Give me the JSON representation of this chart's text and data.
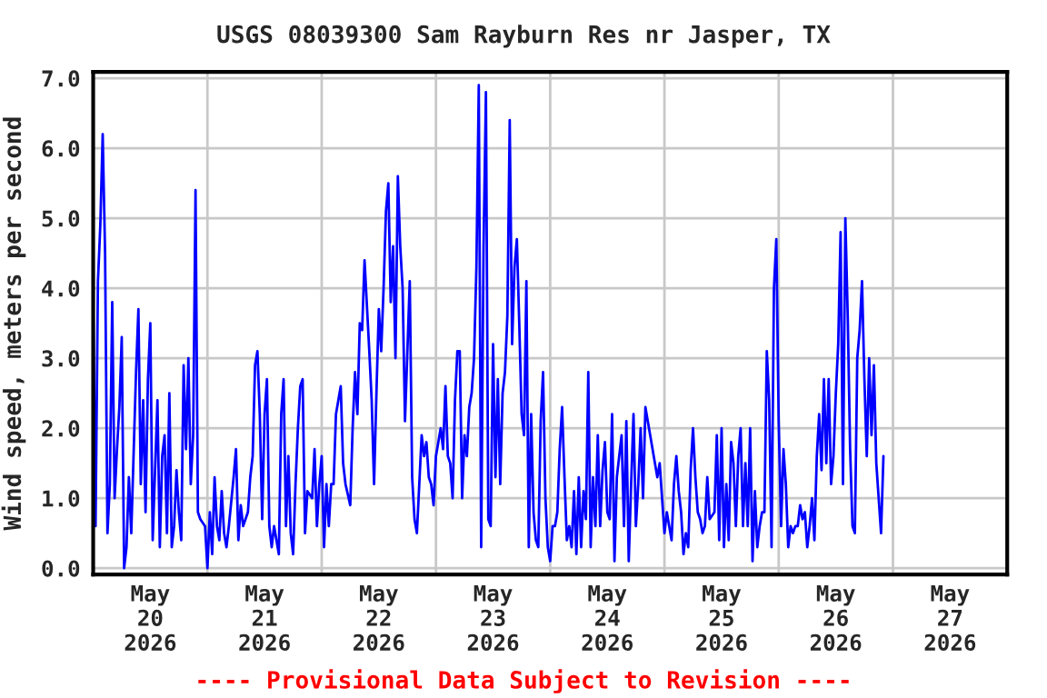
{
  "chart_data": {
    "type": "line",
    "title": "USGS 08039300 Sam Rayburn Res nr Jasper, TX",
    "ylabel": "Wind speed, meters per second",
    "annotations": [
      "---- Provisional Data Subject to Revision ----"
    ],
    "xlim": [
      "2026-05-20T00:00",
      "2026-05-28T00:00"
    ],
    "xticks": [
      {
        "value": "2026-05-20T00:00",
        "label": null
      },
      {
        "value": "2026-05-21T00:00",
        "label": null
      },
      {
        "value": "2026-05-22T00:00",
        "label": null
      },
      {
        "value": "2026-05-23T00:00",
        "label": null
      },
      {
        "value": "2026-05-24T00:00",
        "label": null
      },
      {
        "value": "2026-05-25T00:00",
        "label": null
      },
      {
        "value": "2026-05-26T00:00",
        "label": null
      },
      {
        "value": "2026-05-27T00:00",
        "label": null
      },
      {
        "value": "2026-05-28T00:00",
        "label": null
      },
      {
        "value": "2026-05-20T12:00",
        "label": "May\n20\n2026"
      },
      {
        "value": "2026-05-21T12:00",
        "label": "May\n21\n2026"
      },
      {
        "value": "2026-05-22T12:00",
        "label": "May\n22\n2026"
      },
      {
        "value": "2026-05-23T12:00",
        "label": "May\n23\n2026"
      },
      {
        "value": "2026-05-24T12:00",
        "label": "May\n24\n2026"
      },
      {
        "value": "2026-05-25T12:00",
        "label": "May\n25\n2026"
      },
      {
        "value": "2026-05-26T12:00",
        "label": "May\n26\n2026"
      },
      {
        "value": "2026-05-27T12:00",
        "label": "May\n27\n2026"
      }
    ],
    "ylim": [
      -0.09,
      7.09
    ],
    "yticks": [
      {
        "value": 0,
        "label": "0.0"
      },
      {
        "value": 1,
        "label": "1.0"
      },
      {
        "value": 2,
        "label": "2.0"
      },
      {
        "value": 3,
        "label": "3.0"
      },
      {
        "value": 4,
        "label": "4.0"
      },
      {
        "value": 5,
        "label": "5.0"
      },
      {
        "value": 6,
        "label": "6.0"
      },
      {
        "value": 7,
        "label": "7.0"
      }
    ],
    "grid": true,
    "series": [
      {
        "color": "#0000ff",
        "x": [
          "2026-05-20T00:00",
          "2026-05-20T00:30",
          "2026-05-20T01:00",
          "2026-05-20T01:30",
          "2026-05-20T02:00",
          "2026-05-20T02:30",
          "2026-05-20T03:00",
          "2026-05-20T03:30",
          "2026-05-20T04:00",
          "2026-05-20T04:30",
          "2026-05-20T05:00",
          "2026-05-20T05:30",
          "2026-05-20T06:00",
          "2026-05-20T06:30",
          "2026-05-20T07:00",
          "2026-05-20T07:30",
          "2026-05-20T08:00",
          "2026-05-20T09:00",
          "2026-05-20T09:30",
          "2026-05-20T10:00",
          "2026-05-20T10:30",
          "2026-05-20T11:00",
          "2026-05-20T11:30",
          "2026-05-20T12:00",
          "2026-05-20T12:30",
          "2026-05-20T13:00",
          "2026-05-20T13:30",
          "2026-05-20T14:00",
          "2026-05-20T14:30",
          "2026-05-20T15:00",
          "2026-05-20T15:30",
          "2026-05-20T16:00",
          "2026-05-20T16:30",
          "2026-05-20T17:00",
          "2026-05-20T17:30",
          "2026-05-20T18:00",
          "2026-05-20T18:30",
          "2026-05-20T19:00",
          "2026-05-20T19:30",
          "2026-05-20T20:00",
          "2026-05-20T20:30",
          "2026-05-20T21:00",
          "2026-05-20T21:30",
          "2026-05-20T22:00",
          "2026-05-20T22:30",
          "2026-05-20T23:30",
          "2026-05-21T00:00",
          "2026-05-21T00:30",
          "2026-05-21T01:00",
          "2026-05-21T01:30",
          "2026-05-21T02:00",
          "2026-05-21T02:30",
          "2026-05-21T03:00",
          "2026-05-21T03:30",
          "2026-05-21T04:00",
          "2026-05-21T04:30",
          "2026-05-21T05:30",
          "2026-05-21T06:00",
          "2026-05-21T06:30",
          "2026-05-21T07:00",
          "2026-05-21T07:30",
          "2026-05-21T08:30",
          "2026-05-21T09:00",
          "2026-05-21T09:30",
          "2026-05-21T10:00",
          "2026-05-21T10:30",
          "2026-05-21T11:00",
          "2026-05-21T11:30",
          "2026-05-21T12:00",
          "2026-05-21T12:30",
          "2026-05-21T13:00",
          "2026-05-21T13:30",
          "2026-05-21T14:00",
          "2026-05-21T15:00",
          "2026-05-21T15:30",
          "2026-05-21T16:00",
          "2026-05-21T16:30",
          "2026-05-21T17:00",
          "2026-05-21T17:30",
          "2026-05-21T18:00",
          "2026-05-21T18:30",
          "2026-05-21T19:00",
          "2026-05-21T19:30",
          "2026-05-21T20:00",
          "2026-05-21T20:30",
          "2026-05-21T21:00",
          "2026-05-21T22:00",
          "2026-05-21T22:30",
          "2026-05-21T23:00",
          "2026-05-21T23:30",
          "2026-05-22T00:00",
          "2026-05-22T00:30",
          "2026-05-22T01:00",
          "2026-05-22T01:30",
          "2026-05-22T02:00",
          "2026-05-22T02:30",
          "2026-05-22T03:00",
          "2026-05-22T04:00",
          "2026-05-22T04:30",
          "2026-05-22T05:00",
          "2026-05-22T06:00",
          "2026-05-22T06:30",
          "2026-05-22T07:00",
          "2026-05-22T07:30",
          "2026-05-22T08:00",
          "2026-05-22T08:30",
          "2026-05-22T09:00",
          "2026-05-22T10:00",
          "2026-05-22T10:30",
          "2026-05-22T11:00",
          "2026-05-22T11:30",
          "2026-05-22T12:00",
          "2026-05-22T12:30",
          "2026-05-22T13:00",
          "2026-05-22T13:30",
          "2026-05-22T14:00",
          "2026-05-22T14:30",
          "2026-05-22T15:00",
          "2026-05-22T15:30",
          "2026-05-22T16:00",
          "2026-05-22T16:30",
          "2026-05-22T17:00",
          "2026-05-22T17:30",
          "2026-05-22T18:00",
          "2026-05-22T18:30",
          "2026-05-22T19:00",
          "2026-05-22T19:30",
          "2026-05-22T20:00",
          "2026-05-22T20:30",
          "2026-05-22T21:00",
          "2026-05-22T21:30",
          "2026-05-22T22:00",
          "2026-05-22T22:30",
          "2026-05-22T23:00",
          "2026-05-22T23:30",
          "2026-05-23T00:00",
          "2026-05-23T01:00",
          "2026-05-23T01:30",
          "2026-05-23T02:00",
          "2026-05-23T02:30",
          "2026-05-23T03:00",
          "2026-05-23T03:30",
          "2026-05-23T04:00",
          "2026-05-23T04:30",
          "2026-05-23T05:00",
          "2026-05-23T05:30",
          "2026-05-23T06:00",
          "2026-05-23T06:30",
          "2026-05-23T07:00",
          "2026-05-23T07:30",
          "2026-05-23T08:00",
          "2026-05-23T08:30",
          "2026-05-23T09:00",
          "2026-05-23T09:30",
          "2026-05-23T10:00",
          "2026-05-23T10:30",
          "2026-05-23T11:00",
          "2026-05-23T11:30",
          "2026-05-23T12:00",
          "2026-05-23T12:30",
          "2026-05-23T13:00",
          "2026-05-23T13:30",
          "2026-05-23T14:00",
          "2026-05-23T14:30",
          "2026-05-23T15:00",
          "2026-05-23T15:30",
          "2026-05-23T16:00",
          "2026-05-23T16:30",
          "2026-05-23T17:00",
          "2026-05-23T17:30",
          "2026-05-23T18:00",
          "2026-05-23T18:30",
          "2026-05-23T19:00",
          "2026-05-23T19:30",
          "2026-05-23T20:00",
          "2026-05-23T20:30",
          "2026-05-23T21:00",
          "2026-05-23T21:30",
          "2026-05-23T22:00",
          "2026-05-23T22:30",
          "2026-05-23T23:00",
          "2026-05-23T23:30",
          "2026-05-24T00:00",
          "2026-05-24T00:30",
          "2026-05-24T01:00",
          "2026-05-24T01:30",
          "2026-05-24T02:00",
          "2026-05-24T02:30",
          "2026-05-24T03:00",
          "2026-05-24T03:30",
          "2026-05-24T04:00",
          "2026-05-24T04:30",
          "2026-05-24T05:00",
          "2026-05-24T05:30",
          "2026-05-24T06:00",
          "2026-05-24T06:30",
          "2026-05-24T07:00",
          "2026-05-24T07:30",
          "2026-05-24T08:00",
          "2026-05-24T08:30",
          "2026-05-24T09:00",
          "2026-05-24T09:30",
          "2026-05-24T10:00",
          "2026-05-24T10:30",
          "2026-05-24T11:00",
          "2026-05-24T11:30",
          "2026-05-24T12:00",
          "2026-05-24T12:30",
          "2026-05-24T13:00",
          "2026-05-24T13:30",
          "2026-05-24T14:00",
          "2026-05-24T15:00",
          "2026-05-24T15:30",
          "2026-05-24T16:00",
          "2026-05-24T16:30",
          "2026-05-24T17:00",
          "2026-05-24T17:30",
          "2026-05-24T18:00",
          "2026-05-24T18:30",
          "2026-05-24T19:00",
          "2026-05-24T19:30",
          "2026-05-24T20:00",
          "2026-05-24T20:30",
          "2026-05-24T21:00",
          "2026-05-24T21:30",
          "2026-05-24T22:00",
          "2026-05-24T22:30",
          "2026-05-24T23:00",
          "2026-05-24T23:30",
          "2026-05-25T00:00",
          "2026-05-25T00:30",
          "2026-05-25T01:00",
          "2026-05-25T01:30",
          "2026-05-25T02:00",
          "2026-05-25T02:30",
          "2026-05-25T03:00",
          "2026-05-25T03:30",
          "2026-05-25T04:00",
          "2026-05-25T04:30",
          "2026-05-25T05:00",
          "2026-05-25T05:30",
          "2026-05-25T06:00",
          "2026-05-25T06:30",
          "2026-05-25T07:00",
          "2026-05-25T07:30",
          "2026-05-25T08:00",
          "2026-05-25T08:30",
          "2026-05-25T09:00",
          "2026-05-25T09:30",
          "2026-05-25T10:30",
          "2026-05-25T11:00",
          "2026-05-25T11:30",
          "2026-05-25T12:00",
          "2026-05-25T12:30",
          "2026-05-25T13:00",
          "2026-05-25T13:30",
          "2026-05-25T14:00",
          "2026-05-25T14:30",
          "2026-05-25T15:00",
          "2026-05-25T15:30",
          "2026-05-25T16:00",
          "2026-05-25T16:30",
          "2026-05-25T17:00",
          "2026-05-25T17:30",
          "2026-05-25T18:00",
          "2026-05-25T18:30",
          "2026-05-25T19:00",
          "2026-05-25T19:30",
          "2026-05-25T20:00",
          "2026-05-25T20:30",
          "2026-05-25T21:00",
          "2026-05-25T21:30",
          "2026-05-25T22:00",
          "2026-05-25T22:30",
          "2026-05-25T23:00",
          "2026-05-25T23:30",
          "2026-05-26T00:00",
          "2026-05-26T00:30",
          "2026-05-26T01:00",
          "2026-05-26T01:30",
          "2026-05-26T02:00",
          "2026-05-26T02:30",
          "2026-05-26T03:00",
          "2026-05-26T03:30",
          "2026-05-26T04:00",
          "2026-05-26T04:30",
          "2026-05-26T05:00",
          "2026-05-26T05:30",
          "2026-05-26T06:00",
          "2026-05-26T06:30",
          "2026-05-26T07:00",
          "2026-05-26T07:30",
          "2026-05-26T08:00",
          "2026-05-26T08:30",
          "2026-05-26T09:00",
          "2026-05-26T09:30",
          "2026-05-26T10:00",
          "2026-05-26T10:30",
          "2026-05-26T11:00",
          "2026-05-26T11:30",
          "2026-05-26T12:00",
          "2026-05-26T12:30",
          "2026-05-26T13:00",
          "2026-05-26T13:30",
          "2026-05-26T14:00",
          "2026-05-26T14:30",
          "2026-05-26T15:00",
          "2026-05-26T15:30",
          "2026-05-26T16:00",
          "2026-05-26T16:30",
          "2026-05-26T17:00",
          "2026-05-26T17:30",
          "2026-05-26T18:00",
          "2026-05-26T18:30",
          "2026-05-26T19:00",
          "2026-05-26T19:30",
          "2026-05-26T20:00",
          "2026-05-26T20:30",
          "2026-05-26T21:00",
          "2026-05-26T21:30",
          "2026-05-26T22:00"
        ],
        "values": [
          3.8,
          0.6,
          4.1,
          4.9,
          6.2,
          4.5,
          0.5,
          1.2,
          3.8,
          1.0,
          1.7,
          2.3,
          3.3,
          0.0,
          0.3,
          1.3,
          0.5,
          2.8,
          3.7,
          1.2,
          2.4,
          0.8,
          2.7,
          3.5,
          0.4,
          1.4,
          2.4,
          0.3,
          1.6,
          1.9,
          0.5,
          2.5,
          0.3,
          0.6,
          1.4,
          0.8,
          0.4,
          2.9,
          1.7,
          3.0,
          1.2,
          1.9,
          5.4,
          0.8,
          0.7,
          0.6,
          0.0,
          0.8,
          0.2,
          1.3,
          0.6,
          0.4,
          1.1,
          0.5,
          0.3,
          0.6,
          1.3,
          1.7,
          0.4,
          0.9,
          0.6,
          0.8,
          1.3,
          1.6,
          2.9,
          3.1,
          2.2,
          0.7,
          2.2,
          2.7,
          0.6,
          0.3,
          0.6,
          0.2,
          2.2,
          2.7,
          0.6,
          1.6,
          0.5,
          0.2,
          1.2,
          2.0,
          2.6,
          2.7,
          0.5,
          1.1,
          1.0,
          1.7,
          0.6,
          1.2,
          1.6,
          0.3,
          1.2,
          0.6,
          1.2,
          1.2,
          2.2,
          2.6,
          1.5,
          1.2,
          0.9,
          2.0,
          2.8,
          2.2,
          3.5,
          3.4,
          4.4,
          3.1,
          2.4,
          1.2,
          2.5,
          3.7,
          3.1,
          4.0,
          5.1,
          5.5,
          3.8,
          4.6,
          3.0,
          5.6,
          4.6,
          4.0,
          2.1,
          3.1,
          4.1,
          1.3,
          0.7,
          0.5,
          1.2,
          1.9,
          1.6,
          1.8,
          1.3,
          1.2,
          0.9,
          1.6,
          2.0,
          1.7,
          2.6,
          1.6,
          1.5,
          1.0,
          2.4,
          3.1,
          3.1,
          1.0,
          1.9,
          1.6,
          2.3,
          2.5,
          3.0,
          4.3,
          6.9,
          0.3,
          4.6,
          6.8,
          0.7,
          0.6,
          3.2,
          1.3,
          2.7,
          1.2,
          2.5,
          2.8,
          3.6,
          6.4,
          3.2,
          4.3,
          4.7,
          3.5,
          2.2,
          1.9,
          4.1,
          0.3,
          2.2,
          0.8,
          0.4,
          0.3,
          2.1,
          2.8,
          1.0,
          0.3,
          0.1,
          0.6,
          0.6,
          0.8,
          1.7,
          2.3,
          1.3,
          0.4,
          0.6,
          0.3,
          1.1,
          0.2,
          1.3,
          0.3,
          1.1,
          0.7,
          2.8,
          0.3,
          1.3,
          0.6,
          1.9,
          0.6,
          1.4,
          1.8,
          0.8,
          0.7,
          2.2,
          0.1,
          1.3,
          1.9,
          0.6,
          2.1,
          0.1,
          1.2,
          2.2,
          0.6,
          1.2,
          2.0,
          1.0,
          2.3,
          2.1,
          1.9,
          1.7,
          1.5,
          1.3,
          1.5,
          1.0,
          0.5,
          0.8,
          0.6,
          0.4,
          1.2,
          1.6,
          1.1,
          0.8,
          0.2,
          0.5,
          0.3,
          1.4,
          2.0,
          1.3,
          0.8,
          0.7,
          0.5,
          0.6,
          1.3,
          0.7,
          0.8,
          1.9,
          0.4,
          2.0,
          0.3,
          1.2,
          0.4,
          1.8,
          1.5,
          0.6,
          1.6,
          2.0,
          0.6,
          1.5,
          0.6,
          2.0,
          0.1,
          1.1,
          0.3,
          0.6,
          0.8,
          0.8,
          3.1,
          2.4,
          0.3,
          4.0,
          4.7,
          2.1,
          0.6,
          1.7,
          1.2,
          0.3,
          0.6,
          0.5,
          0.6,
          0.6,
          0.9,
          0.7,
          0.8,
          0.3,
          0.6,
          1.0,
          0.4,
          1.6,
          2.2,
          1.4,
          2.7,
          1.5,
          2.7,
          1.2,
          1.6,
          2.5,
          3.2,
          4.8,
          1.2,
          5.0,
          3.6,
          1.7,
          0.6,
          0.5,
          3.0,
          3.4,
          4.1,
          2.7,
          1.6,
          3.0,
          1.9,
          2.9,
          1.5,
          1.0,
          0.5,
          1.6
        ]
      }
    ]
  }
}
